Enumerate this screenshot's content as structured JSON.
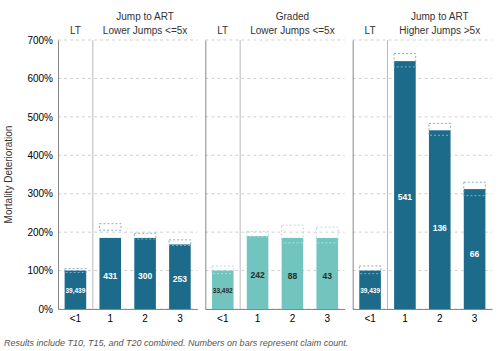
{
  "chart_data": [
    {
      "type": "bar",
      "title": "Jump to ART",
      "subtitle": "Lower Jumps <=5x",
      "ylabel": "Mortality Deterioration",
      "annotations": [
        "LT"
      ],
      "footnote": "Results include T10, T15, and T20 combined. Numbers on bars represent claim count.",
      "categories": [
        "<1",
        "1",
        "2",
        "3"
      ],
      "values": [
        1.0,
        1.85,
        1.85,
        1.68
      ],
      "interval_low": [
        0.95,
        2.05,
        1.82,
        1.65
      ],
      "interval_high": [
        1.05,
        2.22,
        1.97,
        1.8
      ],
      "counts": [
        {
          "value": 39439,
          "label": "39,439"
        },
        {
          "value": 431,
          "label": "431"
        },
        {
          "value": 300,
          "label": "300"
        },
        {
          "value": 253,
          "label": "253"
        }
      ],
      "color": "#1c6b8a",
      "ylim": [
        0,
        7.0
      ],
      "yticks": [
        {
          "value": 0,
          "label": "0%"
        },
        {
          "value": 1.0,
          "label": "100%"
        },
        {
          "value": 2.0,
          "label": "200%"
        },
        {
          "value": 3.0,
          "label": "300%"
        },
        {
          "value": 4.0,
          "label": "400%"
        },
        {
          "value": 5.0,
          "label": "500%"
        },
        {
          "value": 6.0,
          "label": "600%"
        },
        {
          "value": 7.0,
          "label": "700%"
        }
      ],
      "grid": true
    },
    {
      "type": "bar",
      "title": "Graded",
      "subtitle": "Lower Jumps <=5x",
      "annotations": [
        "LT"
      ],
      "categories": [
        "<1",
        "1",
        "2",
        "3"
      ],
      "values": [
        1.0,
        1.9,
        1.85,
        1.85
      ],
      "interval_low": [
        0.92,
        1.88,
        1.72,
        1.72
      ],
      "interval_high": [
        1.12,
        2.02,
        2.18,
        2.13
      ],
      "counts": [
        {
          "value": 33492,
          "label": "33,492"
        },
        {
          "value": 242,
          "label": "242"
        },
        {
          "value": 88,
          "label": "88"
        },
        {
          "value": 43,
          "label": "43"
        }
      ],
      "color": "#72c4bf",
      "ylim": [
        0,
        7.0
      ],
      "yticks": [
        0,
        1.0,
        2.0,
        3.0,
        4.0,
        5.0,
        6.0,
        7.0
      ],
      "grid": true,
      "tick_labels": "x"
    },
    {
      "type": "bar",
      "title": "Jump to ART",
      "subtitle": "Higher Jumps >5x",
      "annotations": [
        "LT"
      ],
      "categories": [
        "<1",
        "1",
        "2",
        "3"
      ],
      "values": [
        1.0,
        6.45,
        4.65,
        3.12
      ],
      "interval_low": [
        0.92,
        6.3,
        4.52,
        2.95
      ],
      "interval_high": [
        1.12,
        6.65,
        4.83,
        3.3
      ],
      "counts": [
        {
          "value": 39439,
          "label": "39,439"
        },
        {
          "value": 541,
          "label": "541"
        },
        {
          "value": 136,
          "label": "136"
        },
        {
          "value": 66,
          "label": "66"
        }
      ],
      "color": "#1c6b8a",
      "ylim": [
        0,
        7.0
      ],
      "yticks": [
        0,
        1.0,
        2.0,
        3.0,
        4.0,
        5.0,
        6.0,
        7.0
      ],
      "grid": true,
      "tick_labels": "x"
    }
  ]
}
